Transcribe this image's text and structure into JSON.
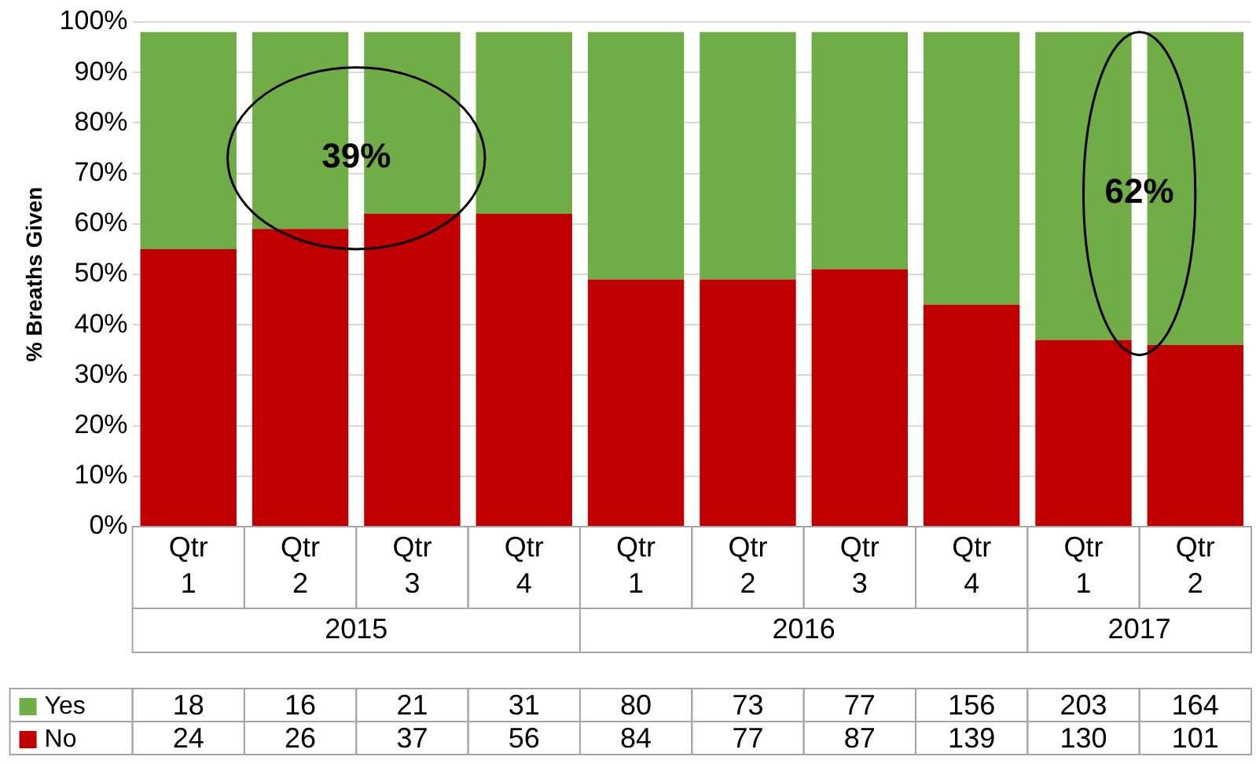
{
  "chart_data": {
    "type": "bar",
    "stacked": true,
    "ylabel": "% Breaths Given",
    "categories": [
      "Qtr 1",
      "Qtr 2",
      "Qtr 3",
      "Qtr 4",
      "Qtr 1",
      "Qtr 2",
      "Qtr 3",
      "Qtr 4",
      "Qtr 1",
      "Qtr 2"
    ],
    "series": [
      {
        "name": "No",
        "color": "#c00000",
        "values": [
          55,
          59,
          62,
          62,
          49,
          49,
          51,
          44,
          37,
          36
        ]
      },
      {
        "name": "Yes",
        "color": "#70ad47",
        "values": [
          43,
          39,
          36,
          36,
          49,
          49,
          47,
          54,
          61,
          62
        ]
      }
    ],
    "ylim": [
      0,
      100
    ],
    "yticks": [
      {
        "value": 0,
        "label": "0%"
      },
      {
        "value": 10,
        "label": "10%"
      },
      {
        "value": 20,
        "label": "20%"
      },
      {
        "value": 30,
        "label": "30%"
      },
      {
        "value": 40,
        "label": "40%"
      },
      {
        "value": 50,
        "label": "50%"
      },
      {
        "value": 60,
        "label": "60%"
      },
      {
        "value": 70,
        "label": "70%"
      },
      {
        "value": 80,
        "label": "80%"
      },
      {
        "value": 90,
        "label": "90%"
      },
      {
        "value": 100,
        "label": "100%"
      }
    ],
    "grid": "y",
    "legend": "bottom left",
    "annotations": [
      "39%",
      "62%",
      "2015",
      "2016",
      "2017",
      "24",
      "26",
      "37",
      "56",
      "84",
      "77",
      "87",
      "139",
      "130",
      "101",
      "18",
      "16",
      "21",
      "31",
      "80",
      "73",
      "77",
      "156",
      "203",
      "164"
    ]
  }
}
